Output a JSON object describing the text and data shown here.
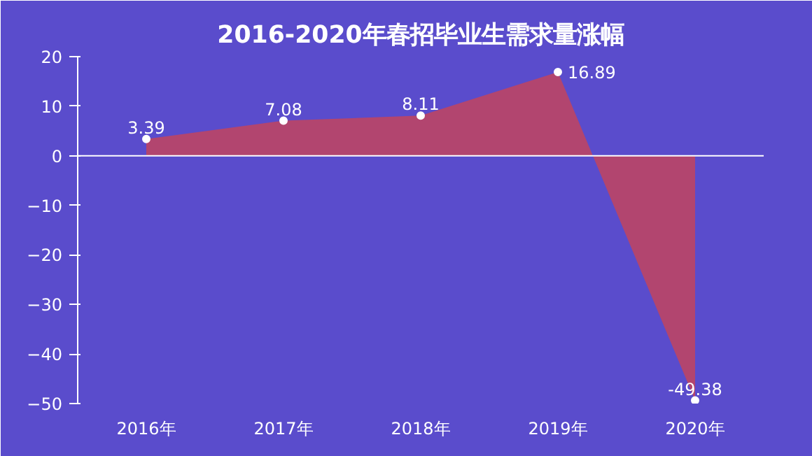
{
  "chart_data": {
    "type": "area",
    "title": "2016-2020年春招毕业生需求量涨幅",
    "categories": [
      "2016年",
      "2017年",
      "2018年",
      "2019年",
      "2020年"
    ],
    "series": [
      {
        "color": "#c2445e",
        "values": [
          3.39,
          7.08,
          8.11,
          16.89,
          -49.38
        ]
      }
    ],
    "ylim": [
      -50,
      20
    ],
    "yticks": [
      -50,
      -40,
      -30,
      -20,
      -10,
      0,
      10,
      20
    ],
    "ref_lines": [
      {
        "axis": "y",
        "value": 0,
        "color": "#ffffff"
      }
    ],
    "data_labels": true,
    "marker": "circle",
    "grid": false
  }
}
